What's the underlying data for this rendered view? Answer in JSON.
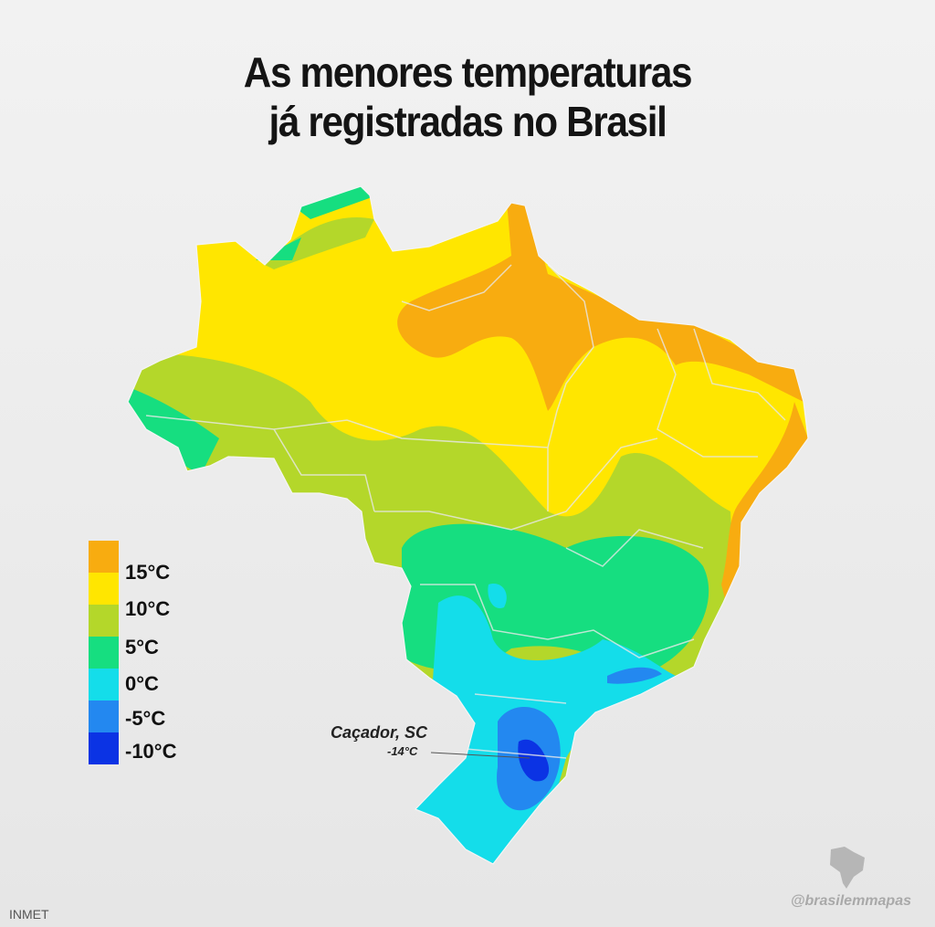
{
  "title": {
    "line1": "As menores temperaturas",
    "line2": "já registradas no Brasil"
  },
  "legend": [
    {
      "label": "15°C",
      "color": "#F8AC10"
    },
    {
      "label": "10°C",
      "color": "#FFE600"
    },
    {
      "label": "5°C",
      "color": "#B4D72A"
    },
    {
      "label": "0°C",
      "color": "#16DE80"
    },
    {
      "label": "-5°C",
      "color": "#14DDEA"
    },
    {
      "label": "-10°C",
      "color": "#2388F0"
    },
    {
      "label": "",
      "color": "#0B33E4"
    }
  ],
  "annotation": {
    "place": "Caçador, SC",
    "value": "-14°C"
  },
  "source": "INMET",
  "watermark": "@brasilemmapas"
}
